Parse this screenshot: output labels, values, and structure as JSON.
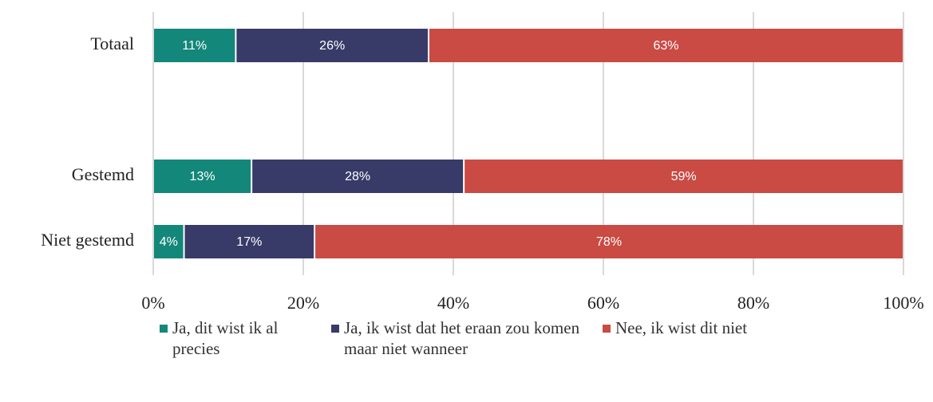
{
  "chart_data": {
    "type": "stacked-barh",
    "categories": [
      "Totaal",
      null,
      "Gestemd",
      "Niet gestemd"
    ],
    "series": [
      {
        "name": "Ja, dit wist ik al precies",
        "color": "#13877a",
        "values": [
          11,
          null,
          13.1,
          4.1
        ],
        "value_labels": [
          "11%",
          null,
          "13%",
          "4%"
        ]
      },
      {
        "name": "Ja, ik wist dat het eraan zou komen maar niet wanneer",
        "color": "#383b68",
        "values": [
          25.7,
          null,
          28.3,
          17.4
        ],
        "value_labels": [
          "26%",
          null,
          "28%",
          "17%"
        ]
      },
      {
        "name": "Nee, ik wist dit niet",
        "color": "#c94b44",
        "values": [
          63.3,
          null,
          58.6,
          78.5
        ],
        "value_labels": [
          "63%",
          null,
          "59%",
          "78%"
        ]
      }
    ],
    "xlim": [
      0,
      100
    ],
    "xticks": [
      {
        "value": 0,
        "label": "0%"
      },
      {
        "value": 20,
        "label": "20%"
      },
      {
        "value": 40,
        "label": "40%"
      },
      {
        "value": 60,
        "label": "60%"
      },
      {
        "value": 80,
        "label": "80%"
      },
      {
        "value": 100,
        "label": "100%"
      }
    ],
    "grid": true
  }
}
